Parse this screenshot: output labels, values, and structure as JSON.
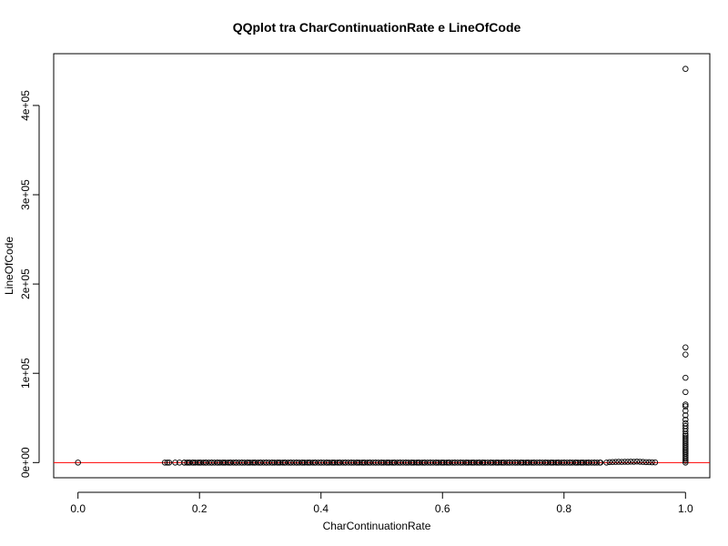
{
  "chart_data": {
    "type": "scatter",
    "title": "QQplot tra CharContinuationRate e LineOfCode",
    "xlabel": "CharContinuationRate",
    "ylabel": "LineOfCode",
    "xlim": [
      -0.04,
      1.04
    ],
    "ylim": [
      -17000,
      458000
    ],
    "x_ticks": [
      {
        "value": 0.0,
        "label": "0.0"
      },
      {
        "value": 0.2,
        "label": "0.2"
      },
      {
        "value": 0.4,
        "label": "0.4"
      },
      {
        "value": 0.6,
        "label": "0.6"
      },
      {
        "value": 0.8,
        "label": "0.8"
      },
      {
        "value": 1.0,
        "label": "1.0"
      }
    ],
    "y_ticks": [
      {
        "value": 0,
        "label": "0e+00"
      },
      {
        "value": 100000,
        "label": "1e+05"
      },
      {
        "value": 200000,
        "label": "2e+05"
      },
      {
        "value": 300000,
        "label": "3e+05"
      },
      {
        "value": 400000,
        "label": "4e+05"
      }
    ],
    "reference_line": {
      "type": "horizontal",
      "y": 0,
      "color": "#ff0000"
    },
    "marker": {
      "shape": "open-circle",
      "color": "#000000"
    },
    "series": [
      {
        "points": [
          [
            0.0,
            0
          ],
          [
            0.143,
            0
          ],
          [
            0.147,
            0
          ],
          [
            0.15,
            0
          ],
          [
            0.16,
            0
          ],
          [
            0.167,
            0
          ],
          [
            0.175,
            0
          ],
          [
            0.182,
            0
          ],
          [
            0.19,
            0
          ],
          [
            0.2,
            0
          ],
          [
            0.21,
            0
          ],
          [
            0.22,
            0
          ],
          [
            0.23,
            0
          ],
          [
            0.24,
            0
          ],
          [
            0.25,
            0
          ],
          [
            0.26,
            0
          ],
          [
            0.27,
            0
          ],
          [
            0.28,
            0
          ],
          [
            0.29,
            0
          ],
          [
            0.3,
            0
          ],
          [
            0.31,
            0
          ],
          [
            0.32,
            0
          ],
          [
            0.33,
            0
          ],
          [
            0.34,
            0
          ],
          [
            0.35,
            0
          ],
          [
            0.36,
            0
          ],
          [
            0.37,
            0
          ],
          [
            0.38,
            0
          ],
          [
            0.39,
            0
          ],
          [
            0.4,
            0
          ],
          [
            0.41,
            0
          ],
          [
            0.42,
            0
          ],
          [
            0.43,
            0
          ],
          [
            0.44,
            0
          ],
          [
            0.45,
            0
          ],
          [
            0.46,
            0
          ],
          [
            0.47,
            0
          ],
          [
            0.48,
            0
          ],
          [
            0.49,
            0
          ],
          [
            0.5,
            0
          ],
          [
            0.51,
            0
          ],
          [
            0.52,
            0
          ],
          [
            0.53,
            0
          ],
          [
            0.54,
            0
          ],
          [
            0.55,
            0
          ],
          [
            0.56,
            0
          ],
          [
            0.57,
            0
          ],
          [
            0.58,
            0
          ],
          [
            0.59,
            0
          ],
          [
            0.6,
            0
          ],
          [
            0.61,
            0
          ],
          [
            0.62,
            0
          ],
          [
            0.63,
            0
          ],
          [
            0.64,
            0
          ],
          [
            0.65,
            0
          ],
          [
            0.66,
            0
          ],
          [
            0.667,
            0
          ],
          [
            0.68,
            0
          ],
          [
            0.69,
            0
          ],
          [
            0.7,
            0
          ],
          [
            0.71,
            0
          ],
          [
            0.72,
            0
          ],
          [
            0.73,
            0
          ],
          [
            0.74,
            0
          ],
          [
            0.75,
            0
          ],
          [
            0.76,
            0
          ],
          [
            0.77,
            0
          ],
          [
            0.78,
            0
          ],
          [
            0.79,
            0
          ],
          [
            0.8,
            0
          ],
          [
            0.81,
            0
          ],
          [
            0.82,
            0
          ],
          [
            0.83,
            0
          ],
          [
            0.84,
            0
          ],
          [
            0.85,
            0
          ],
          [
            0.86,
            0
          ],
          [
            0.87,
            0
          ],
          [
            0.875,
            500
          ],
          [
            0.88,
            600
          ],
          [
            0.885,
            700
          ],
          [
            0.89,
            800
          ],
          [
            0.895,
            700
          ],
          [
            0.9,
            900
          ],
          [
            0.905,
            800
          ],
          [
            0.91,
            1000
          ],
          [
            0.915,
            900
          ],
          [
            0.92,
            1100
          ],
          [
            0.925,
            900
          ],
          [
            0.93,
            700
          ],
          [
            0.935,
            500
          ],
          [
            0.94,
            400
          ],
          [
            0.945,
            300
          ],
          [
            0.95,
            200
          ],
          [
            1.0,
            0
          ],
          [
            1.0,
            2000
          ],
          [
            1.0,
            4000
          ],
          [
            1.0,
            6000
          ],
          [
            1.0,
            8000
          ],
          [
            1.0,
            10000
          ],
          [
            1.0,
            12000
          ],
          [
            1.0,
            14000
          ],
          [
            1.0,
            16000
          ],
          [
            1.0,
            18000
          ],
          [
            1.0,
            20000
          ],
          [
            1.0,
            22000
          ],
          [
            1.0,
            24000
          ],
          [
            1.0,
            26000
          ],
          [
            1.0,
            28000
          ],
          [
            1.0,
            30000
          ],
          [
            1.0,
            32000
          ],
          [
            1.0,
            35000
          ],
          [
            1.0,
            38000
          ],
          [
            1.0,
            41000
          ],
          [
            1.0,
            44000
          ],
          [
            1.0,
            48000
          ],
          [
            1.0,
            53000
          ],
          [
            1.0,
            58000
          ],
          [
            1.0,
            63000
          ],
          [
            1.0,
            65000
          ],
          [
            1.0,
            79000
          ],
          [
            1.0,
            95000
          ],
          [
            1.0,
            121000
          ],
          [
            1.0,
            129000
          ],
          [
            1.0,
            441000
          ]
        ]
      }
    ]
  }
}
